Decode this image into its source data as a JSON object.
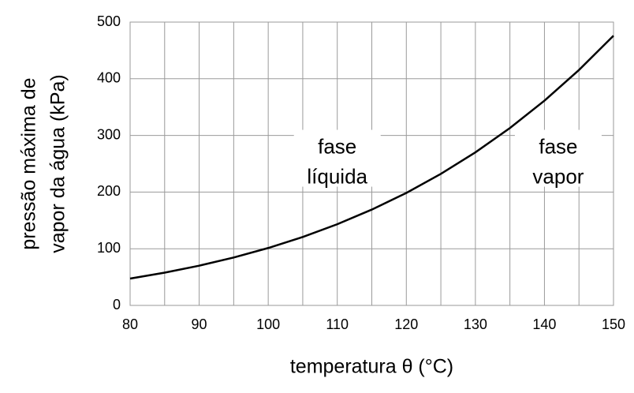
{
  "chart_data": {
    "type": "line",
    "x": [
      80,
      85,
      90,
      95,
      100,
      105,
      110,
      115,
      120,
      125,
      130,
      135,
      140,
      145,
      150
    ],
    "series": [
      {
        "color": "#000000",
        "values": [
          47.4,
          57.8,
          70.1,
          84.5,
          101.3,
          120.8,
          143.3,
          169.1,
          198.5,
          232.1,
          270.1,
          313.0,
          361.3,
          415.5,
          476.0
        ]
      }
    ],
    "xlim": [
      80,
      150
    ],
    "xticks": [
      80,
      90,
      100,
      110,
      120,
      130,
      140,
      150
    ],
    "xminorticks": [
      85,
      95,
      105,
      115,
      125,
      135,
      145
    ],
    "ylim": [
      0,
      500
    ],
    "yticks": [
      0,
      100,
      200,
      300,
      400,
      500
    ],
    "grid": true,
    "xlabel": "temperatura θ (°C)",
    "ylabel": [
      "pressão máxima de",
      "vapor da água (kPa)"
    ],
    "annotations": [
      {
        "lines": [
          "fase",
          "líquida"
        ],
        "x": 110,
        "y": 275
      },
      {
        "lines": [
          "fase",
          "vapor"
        ],
        "x": 142,
        "y": 275
      }
    ]
  }
}
